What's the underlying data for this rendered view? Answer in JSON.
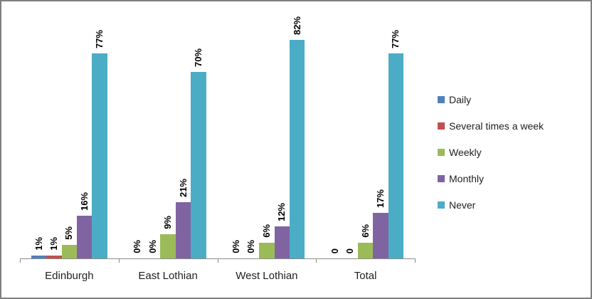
{
  "window": {
    "border_color": "#808080",
    "background_color": "#ffffff"
  },
  "chart_data": {
    "type": "bar",
    "title": "",
    "xlabel": "",
    "ylabel": "",
    "ylim": [
      0,
      100
    ],
    "grid": false,
    "legend_position": "right",
    "axis_color": "#8c8c8c",
    "categories": [
      "Edinburgh",
      "East Lothian",
      "West Lothian",
      "Total"
    ],
    "series": [
      {
        "name": "Daily",
        "color": "#4f81bd",
        "values": [
          1,
          0,
          0,
          0
        ],
        "labels": [
          "1%",
          "0%",
          "0%",
          "0"
        ]
      },
      {
        "name": "Several times a week",
        "color": "#c0504d",
        "values": [
          1,
          0,
          0,
          0
        ],
        "labels": [
          "1%",
          "0%",
          "0%",
          "0"
        ]
      },
      {
        "name": "Weekly",
        "color": "#9bbb59",
        "values": [
          5,
          9,
          6,
          6
        ],
        "labels": [
          "5%",
          "9%",
          "6%",
          "6%"
        ]
      },
      {
        "name": "Monthly",
        "color": "#8064a2",
        "values": [
          16,
          21,
          12,
          17
        ],
        "labels": [
          "16%",
          "21%",
          "12%",
          "17%"
        ]
      },
      {
        "name": "Never",
        "color": "#4bacc6",
        "values": [
          77,
          70,
          82,
          77
        ],
        "labels": [
          "77%",
          "70%",
          "82%",
          "77%"
        ]
      }
    ],
    "legend_entries": [
      "Daily",
      "Several times a week",
      "Weekly",
      "Monthly",
      "Never"
    ]
  }
}
